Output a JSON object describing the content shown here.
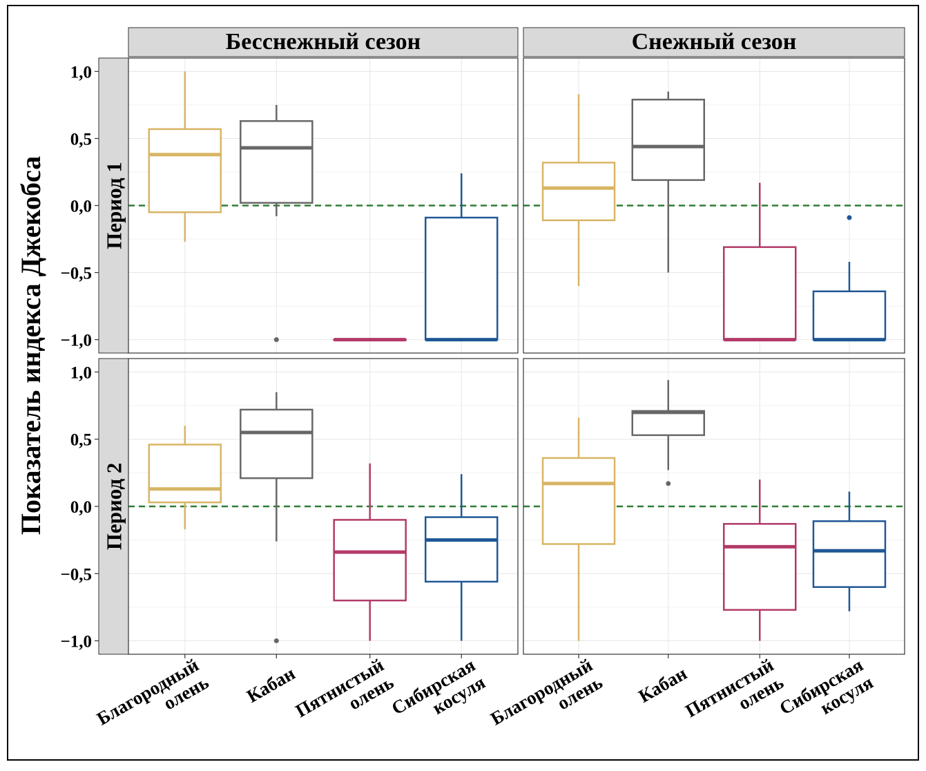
{
  "chart_data": {
    "type": "boxplot",
    "ylabel": "Показатель индекса Джекобса",
    "ylim": [
      -1.1,
      1.1
    ],
    "yticks": [
      1.0,
      0.5,
      0.0,
      -0.5,
      -1.0
    ],
    "ytick_labels": [
      "1,0",
      "0,5",
      "0,0",
      "−0,5",
      "−1,0"
    ],
    "reference_line": {
      "y": 0,
      "style": "dashed",
      "color": "#2e7d32"
    },
    "categories": [
      {
        "key": "red_deer",
        "label_lines": [
          "Благородный",
          "олень"
        ],
        "color": "#d8b564"
      },
      {
        "key": "boar",
        "label_lines": [
          "Кабан"
        ],
        "color": "#676767"
      },
      {
        "key": "sika",
        "label_lines": [
          "Пятнистый",
          "олень"
        ],
        "color": "#b23a68"
      },
      {
        "key": "roe",
        "label_lines": [
          "Сибирская",
          "косуля"
        ],
        "color": "#1f5796"
      }
    ],
    "col_facets": [
      "Бесснежный сезон",
      "Снежный сезон"
    ],
    "row_facets": [
      "Период 1",
      "Период 2"
    ],
    "grid": true,
    "panels": [
      {
        "season": "Бесснежный сезон",
        "period": "Период 1",
        "boxes": [
          {
            "min": -0.27,
            "q1": -0.05,
            "median": 0.38,
            "q3": 0.57,
            "max": 1.0,
            "outliers": []
          },
          {
            "min": -0.08,
            "q1": 0.02,
            "median": 0.43,
            "q3": 0.63,
            "max": 0.75,
            "outliers": [
              -1.0
            ]
          },
          {
            "min": -1.0,
            "q1": -1.0,
            "median": -1.0,
            "q3": -1.0,
            "max": -1.0,
            "outliers": []
          },
          {
            "min": -1.0,
            "q1": -1.0,
            "median": -1.0,
            "q3": -0.09,
            "max": 0.24,
            "outliers": []
          }
        ]
      },
      {
        "season": "Снежный сезон",
        "period": "Период 1",
        "boxes": [
          {
            "min": -0.6,
            "q1": -0.11,
            "median": 0.13,
            "q3": 0.32,
            "max": 0.83,
            "outliers": []
          },
          {
            "min": -0.5,
            "q1": 0.19,
            "median": 0.44,
            "q3": 0.79,
            "max": 0.85,
            "outliers": []
          },
          {
            "min": -1.0,
            "q1": -1.0,
            "median": -1.0,
            "q3": -0.31,
            "max": 0.17,
            "outliers": []
          },
          {
            "min": -1.0,
            "q1": -1.0,
            "median": -1.0,
            "q3": -0.64,
            "max": -0.42,
            "outliers": [
              -0.09
            ]
          }
        ]
      },
      {
        "season": "Бесснежный сезон",
        "period": "Период 2",
        "boxes": [
          {
            "min": -0.17,
            "q1": 0.03,
            "median": 0.13,
            "q3": 0.46,
            "max": 0.6,
            "outliers": []
          },
          {
            "min": -0.26,
            "q1": 0.21,
            "median": 0.55,
            "q3": 0.72,
            "max": 0.85,
            "outliers": [
              -1.0
            ]
          },
          {
            "min": -1.0,
            "q1": -0.7,
            "median": -0.34,
            "q3": -0.1,
            "max": 0.32,
            "outliers": []
          },
          {
            "min": -1.0,
            "q1": -0.56,
            "median": -0.25,
            "q3": -0.08,
            "max": 0.24,
            "outliers": []
          }
        ]
      },
      {
        "season": "Снежный сезон",
        "period": "Период 2",
        "boxes": [
          {
            "min": -1.0,
            "q1": -0.28,
            "median": 0.17,
            "q3": 0.36,
            "max": 0.66,
            "outliers": []
          },
          {
            "min": 0.27,
            "q1": 0.53,
            "median": 0.7,
            "q3": 0.71,
            "max": 0.94,
            "outliers": [
              0.17
            ]
          },
          {
            "min": -1.0,
            "q1": -0.77,
            "median": -0.3,
            "q3": -0.13,
            "max": 0.2,
            "outliers": []
          },
          {
            "min": -0.78,
            "q1": -0.6,
            "median": -0.33,
            "q3": -0.11,
            "max": 0.11,
            "outliers": []
          }
        ]
      }
    ]
  }
}
